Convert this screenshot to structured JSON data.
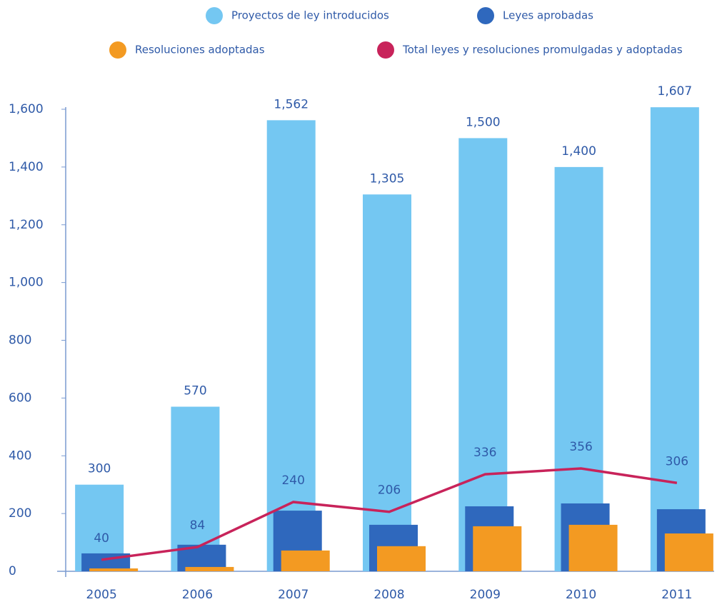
{
  "chart_data": {
    "type": "bar",
    "categories": [
      "2005",
      "2006",
      "2007",
      "2008",
      "2009",
      "2010",
      "2011"
    ],
    "series": [
      {
        "name": "Proyectos de ley introducidos",
        "color": "#74c7f2",
        "values": [
          300,
          570,
          1562,
          1305,
          1500,
          1400,
          1607
        ]
      },
      {
        "name": "Leyes aprobadas",
        "color": "#2f68bd",
        "values": [
          62,
          92,
          210,
          161,
          225,
          235,
          215
        ]
      },
      {
        "name": "Resoluciones adoptadas",
        "color": "#f39a22",
        "values": [
          10,
          15,
          72,
          87,
          156,
          161,
          131
        ]
      },
      {
        "name": "Total leyes y resoluciones promulgadas y adoptadas",
        "color": "#c8235a",
        "type": "line",
        "values": [
          40,
          84,
          240,
          206,
          336,
          356,
          306
        ]
      }
    ],
    "ylim": [
      0,
      1600
    ],
    "yticks": [
      0,
      200,
      400,
      600,
      800,
      {
        "value": 1000,
        "label": "1,000"
      },
      {
        "value": 1200,
        "label": "1,200"
      },
      {
        "value": 1400,
        "label": "1,400"
      },
      {
        "value": 1600,
        "label": "1,600"
      }
    ],
    "value_labels": [
      [
        "300",
        "570",
        "1,562",
        "1,305",
        "1,500",
        "1,400",
        "1,607"
      ],
      null,
      null,
      [
        "40",
        "84",
        "240",
        "206",
        "336",
        "356",
        "306"
      ]
    ]
  }
}
